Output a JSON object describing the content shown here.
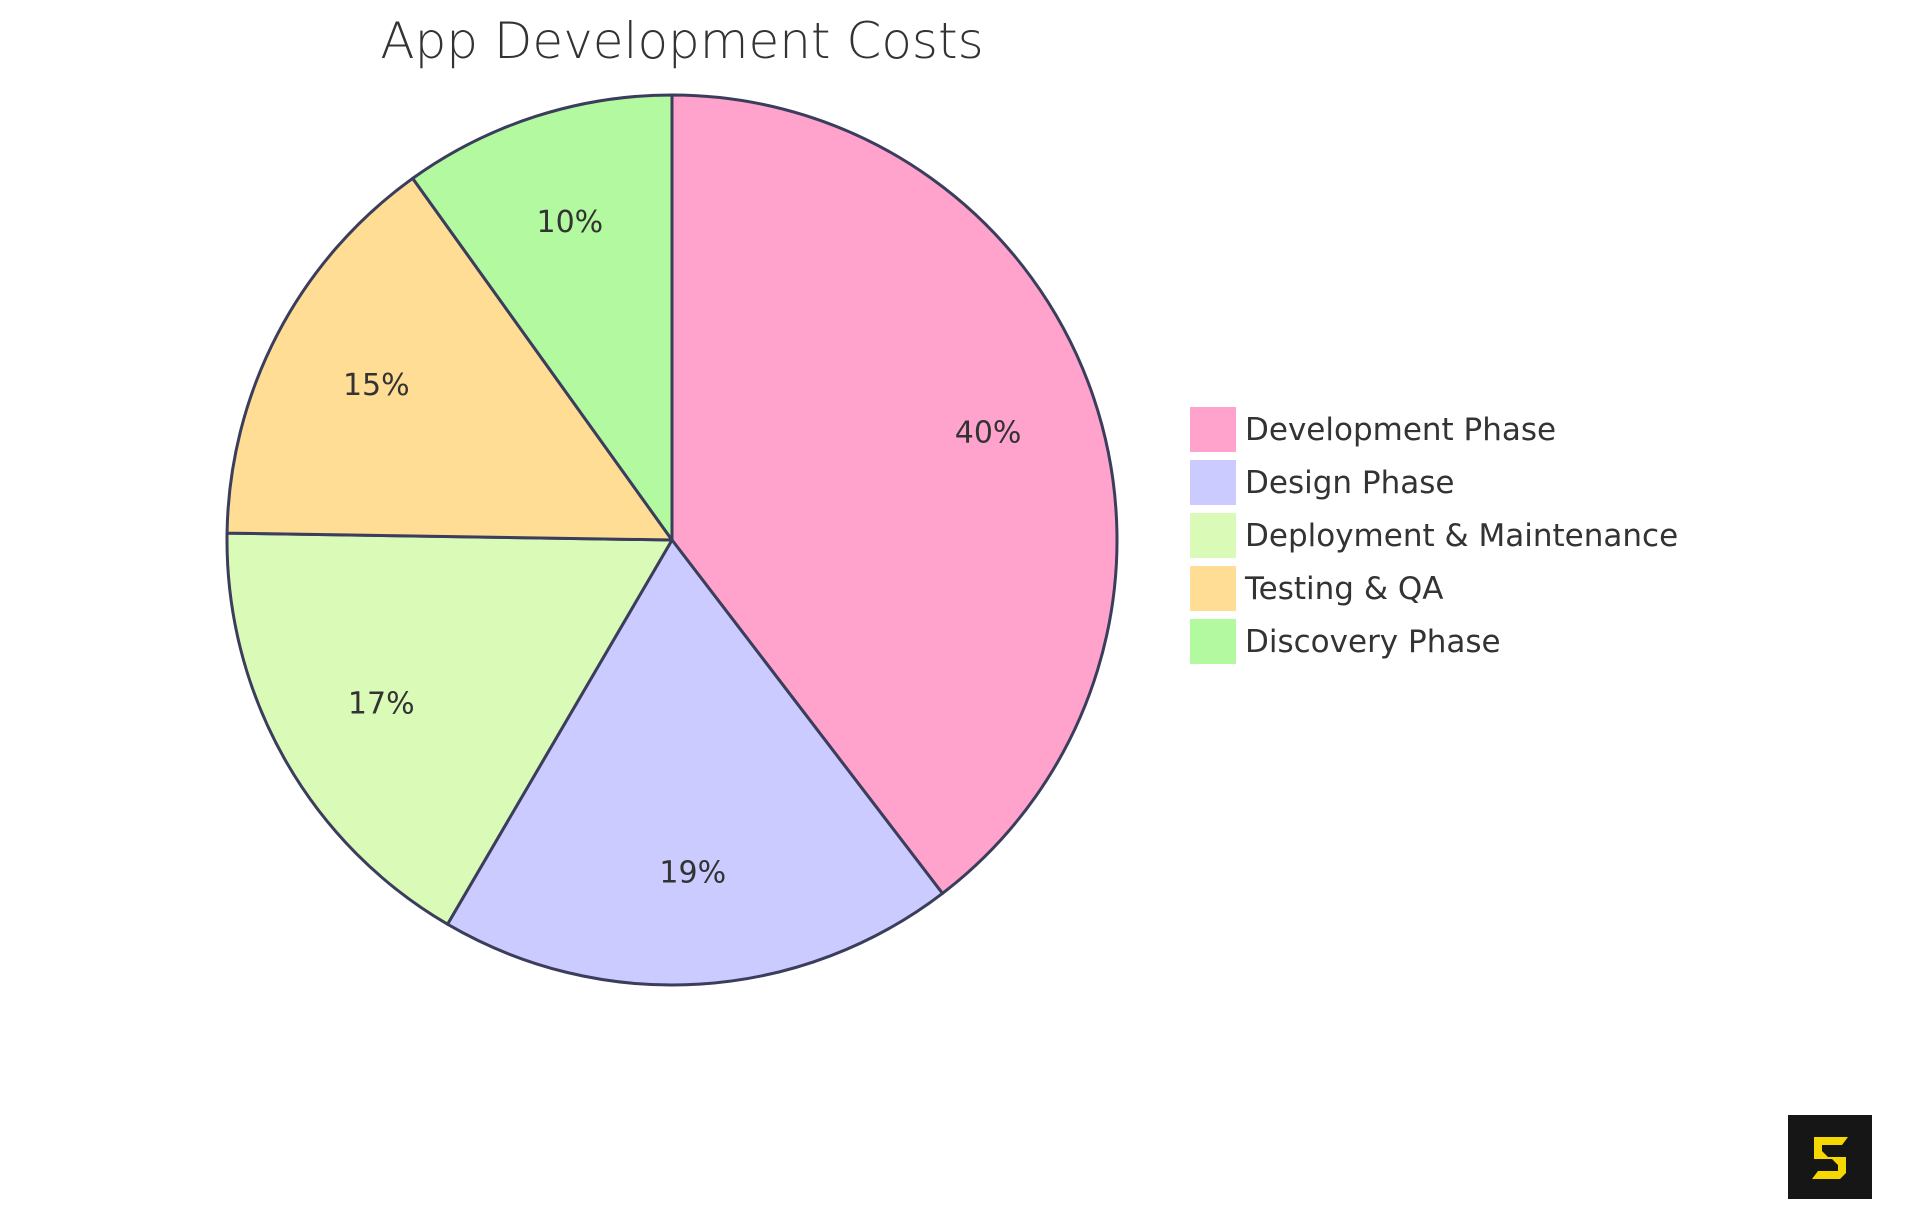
{
  "title": "App Development Costs",
  "chart_data": {
    "type": "pie",
    "title": "App Development Costs",
    "categories": [
      "Development Phase",
      "Design Phase",
      "Deployment & Maintenance",
      "Testing & QA",
      "Discovery Phase"
    ],
    "values": [
      40,
      19,
      17,
      15,
      10
    ],
    "labels": [
      "40%",
      "19%",
      "17%",
      "15%",
      "10%"
    ],
    "colors": [
      "#ffa3cd",
      "#cbcbff",
      "#dafbb7",
      "#ffdd95",
      "#b3f9a0"
    ],
    "stroke_color": "#3b3d5c",
    "start_angle": "top, clockwise",
    "legend_position": "right"
  },
  "legend": {
    "items": [
      {
        "label": "Development Phase",
        "color": "#ffa3cd"
      },
      {
        "label": "Design Phase",
        "color": "#cbcbff"
      },
      {
        "label": "Deployment & Maintenance",
        "color": "#dafbb7"
      },
      {
        "label": "Testing & QA",
        "color": "#ffdd95"
      },
      {
        "label": "Discovery Phase",
        "color": "#b3f9a0"
      }
    ]
  },
  "logo": {
    "icon": "s-logo-icon",
    "background": "#161616",
    "foreground": "#f5d800"
  }
}
